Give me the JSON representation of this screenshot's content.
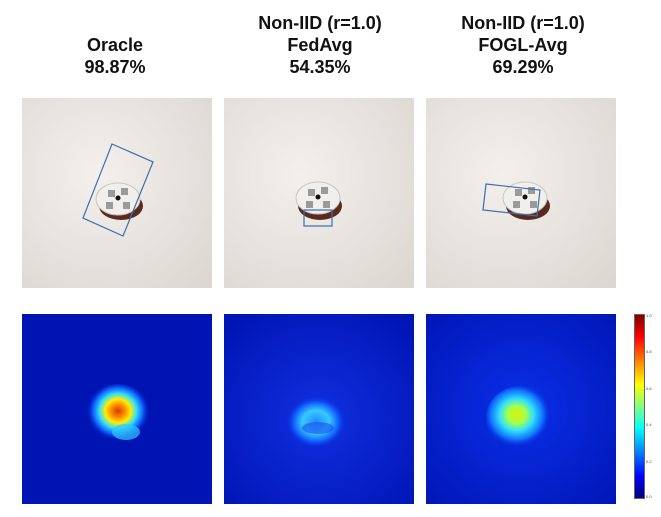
{
  "columns": [
    {
      "line1": "",
      "line2": "Oracle",
      "line3": "98.87%"
    },
    {
      "line1": "Non-IID (r=1.0)",
      "line2": "FedAvg",
      "line3": "54.35%"
    },
    {
      "line1": "Non-IID (r=1.0)",
      "line2": "FOGL-Avg",
      "line3": "69.29%"
    }
  ],
  "colorbar": {
    "ticks": [
      "1.0",
      "0.8",
      "0.6",
      "0.4",
      "0.2",
      "0.0"
    ],
    "max_color": "#7f0000",
    "min_color": "#00007f"
  },
  "colors": {
    "photo_background": "#ece8e3",
    "heatmap_background": "#0014b4",
    "prediction_box": "#3a6fb0"
  }
}
